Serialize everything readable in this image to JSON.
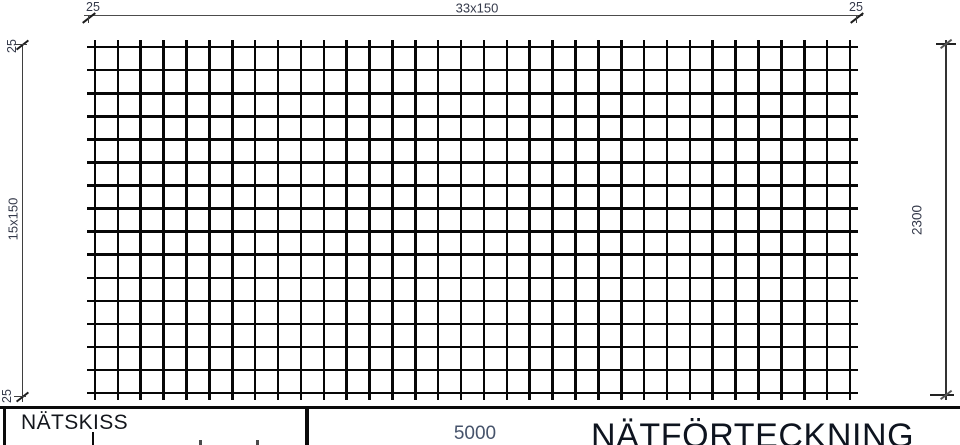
{
  "drawing": {
    "name": "reinforcement-net-sketch",
    "dimensions": {
      "top": {
        "left_offset": "25",
        "span": "33x150",
        "right_offset": "25"
      },
      "left": {
        "top_offset": "25",
        "span": "15x150",
        "bottom_offset": "25"
      },
      "right": {
        "height_total": "2300"
      },
      "bottom": {
        "width_total": "5000"
      }
    },
    "mesh": {
      "vertical_bar_count": 34,
      "horizontal_bar_count": 16,
      "bar_color": "#070707"
    },
    "title_block": {
      "sketch_label": "NÄTSKISS",
      "schedule_label": "NÄTFÖRTECKNING"
    },
    "colors": {
      "dimension_line": "#4c4c4c",
      "dimension_text": "#34394a",
      "title_text": "#13161c"
    }
  }
}
